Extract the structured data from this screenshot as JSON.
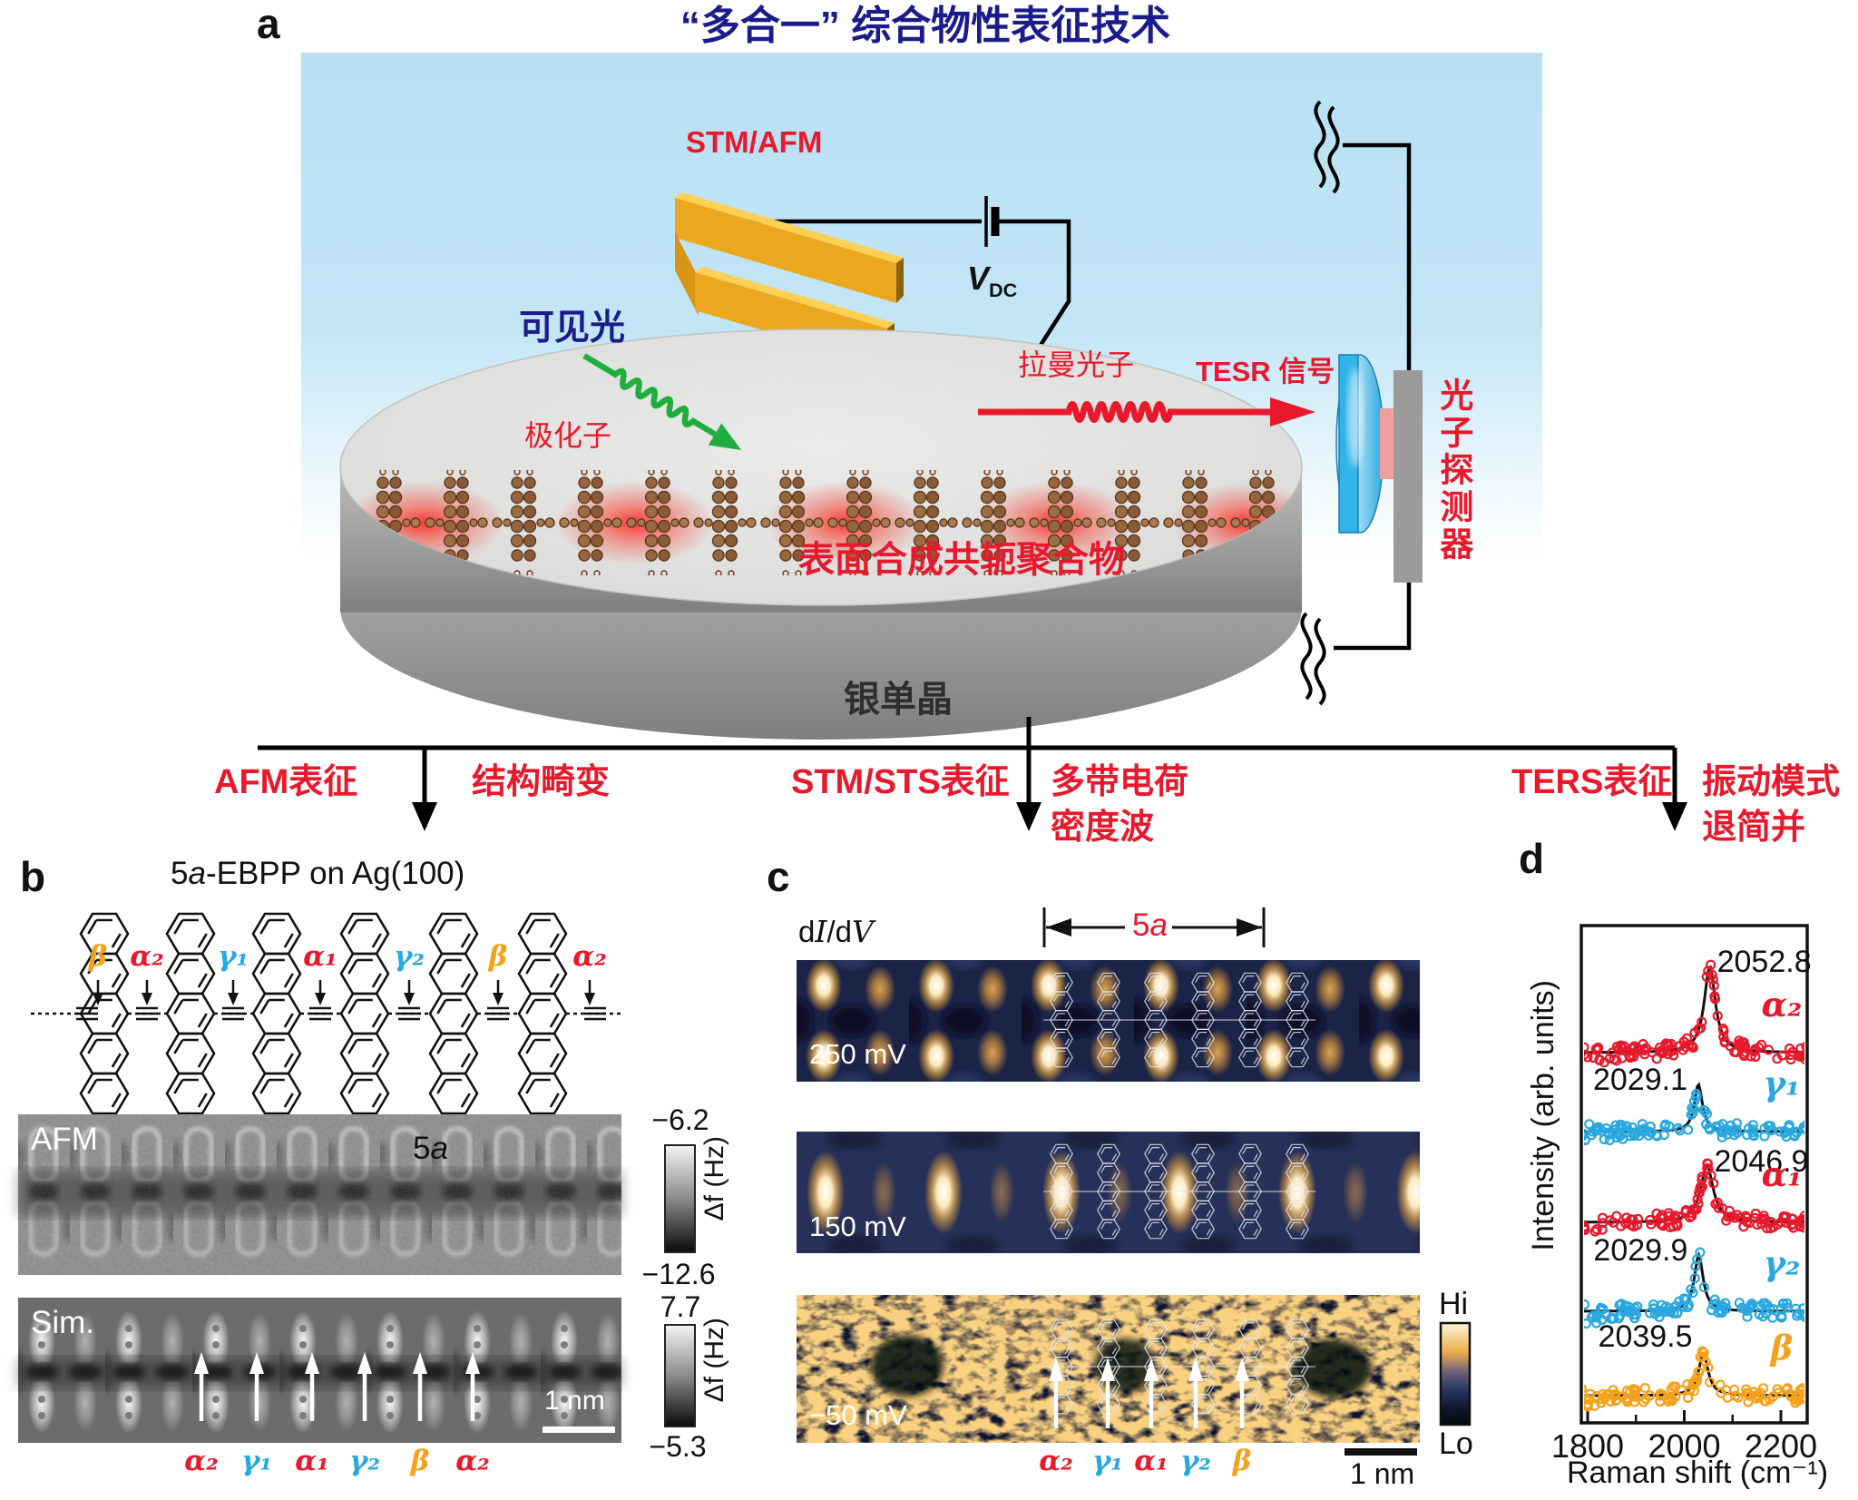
{
  "title": "“多合一” 综合物性表征技术",
  "panel_a": {
    "label": "a",
    "stm_afm": "STM/AFM",
    "vdc_v": "V",
    "vdc_sub": "DC",
    "visible_light": "可见光",
    "polaron": "极化子",
    "raman_photon": "拉曼光子",
    "tesr_signal": "TESR 信号",
    "photon_detector": "光子探测器",
    "polymer": "表面合成共轭聚合物",
    "silver_crystal": "银单晶"
  },
  "flow": {
    "afm_left": "AFM表征",
    "afm_right": "结构畸变",
    "sts_left": "STM/STS表征",
    "sts_right1": "多带电荷",
    "sts_right2": "密度波",
    "ters_left": "TERS表征",
    "ters_right1": "振动模式",
    "ters_right2": "退简并"
  },
  "panel_b": {
    "label": "b",
    "title_n": "5",
    "title_a": "a",
    "title_rest": "-EBPP on Ag(100)",
    "bond_labels": [
      {
        "text": "β",
        "color": "#f5a11a"
      },
      {
        "text": "α₂",
        "color": "#e8192c"
      },
      {
        "text": "γ₁",
        "color": "#29a7e0"
      },
      {
        "text": "α₁",
        "color": "#e8192c"
      },
      {
        "text": "γ₂",
        "color": "#29a7e0"
      },
      {
        "text": "β",
        "color": "#f5a11a"
      },
      {
        "text": "α₂",
        "color": "#e8192c"
      }
    ],
    "span_n": "5",
    "span_a": "a",
    "afm_tag": "AFM",
    "sim_tag": "Sim.",
    "scale1_top": "−6.2",
    "scale1_bottom": "−12.6",
    "scale1_unit": "Δf (Hz)",
    "scale2_top": "7.7",
    "scale2_bottom": "−5.3",
    "scale2_unit": "Δf (Hz)",
    "scalebar": "1 nm",
    "bottom_labels": [
      {
        "text": "α₂",
        "color": "#e8192c"
      },
      {
        "text": "γ₁",
        "color": "#29a7e0"
      },
      {
        "text": "α₁",
        "color": "#e8192c"
      },
      {
        "text": "γ₂",
        "color": "#29a7e0"
      },
      {
        "text": "β",
        "color": "#f5a11a"
      },
      {
        "text": "α₂",
        "color": "#e8192c"
      }
    ]
  },
  "panel_c": {
    "label": "c",
    "didv_1": "d",
    "didv_2": "I",
    "didv_3": "/d",
    "didv_4": "V",
    "span_n": "5",
    "span_a": "a",
    "bias_1": "250 mV",
    "bias_2": "150 mV",
    "bias_3": "−50 mV",
    "colorbar_hi": "Hi",
    "colorbar_lo": "Lo",
    "scalebar": "1 nm",
    "bottom_labels": [
      {
        "text": "α₂",
        "color": "#e8192c"
      },
      {
        "text": "γ₁",
        "color": "#29a7e0"
      },
      {
        "text": "α₁",
        "color": "#e8192c"
      },
      {
        "text": "γ₂",
        "color": "#29a7e0"
      },
      {
        "text": "β",
        "color": "#f5a11a"
      }
    ]
  },
  "panel_d": {
    "label": "d",
    "ylabel": "Intensity (arb. units)",
    "xlabel": "Raman shift (cm⁻¹)"
  },
  "chart_data": {
    "type": "scatter",
    "description": "Stacked TERS spectra with Lorentzian fits; fitted peak position labeled for each vibrational mode",
    "xlabel": "Raman shift (cm⁻¹)",
    "ylabel": "Intensity (arb. units)",
    "xlim": [
      1787,
      2255
    ],
    "xticks": [
      1800,
      2000,
      2200
    ],
    "minor_ticks": [
      1900,
      2100
    ],
    "legend_position": "right-of-each-curve",
    "series": [
      {
        "name": "α₂",
        "peak": 2052.8,
        "color": "#e8192c",
        "amp": 95,
        "hw": 14,
        "side": "right",
        "dy": 0
      },
      {
        "name": "γ₁",
        "peak": 2029.1,
        "color": "#29a7e0",
        "amp": 52,
        "hw": 10,
        "side": "left",
        "dy": 0
      },
      {
        "name": "α₁",
        "peak": 2046.9,
        "color": "#e8192c",
        "amp": 62,
        "hw": 16,
        "side": "right",
        "dy": 0
      },
      {
        "name": "γ₂",
        "peak": 2029.9,
        "color": "#29a7e0",
        "amp": 62,
        "hw": 11,
        "side": "left",
        "dy": 0
      },
      {
        "name": "β",
        "peak": 2039.5,
        "color": "#f5a11a",
        "amp": 46,
        "hw": 12,
        "side": "left",
        "dy": -14
      }
    ]
  }
}
